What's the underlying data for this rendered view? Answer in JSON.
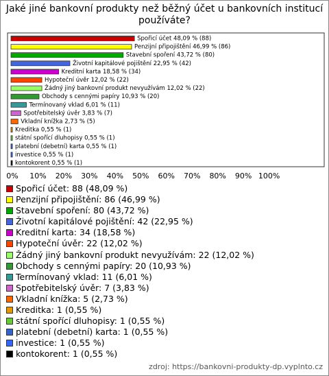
{
  "chart_data": {
    "type": "bar",
    "orientation": "horizontal",
    "title": "Jaké jiné bankovní produkty než běžný účet u bankovních institucí používáte?",
    "categories": [
      "Spořicí účet",
      "Penzijní připojištění",
      "Stavební spoření",
      "Životní kapitálové pojištění",
      "Kreditní karta",
      "Hypoteční úvěr",
      "Žádný jiný bankovní produkt nevyužívám",
      "Obchody s cennými papíry",
      "Termínovaný vklad",
      "Spotřebitelský úvěr",
      "Vkladní knížka",
      "Kreditka",
      "státní spořící dluhopisy",
      "platební (debetní) karta",
      "investice",
      "kontokorent"
    ],
    "values": [
      48.09,
      46.99,
      43.72,
      22.95,
      18.58,
      12.02,
      12.02,
      10.93,
      6.01,
      3.83,
      2.73,
      0.55,
      0.55,
      0.55,
      0.55,
      0.55
    ],
    "value_labels": [
      "Spořicí účet 48,09 % (88)",
      "Penzijní připojištění 46,99 % (86)",
      "Stavební spoření 43,72 % (80)",
      "Životní kapitálové pojištění 22,95 % (42)",
      "Kreditní karta 18,58 % (34)",
      "Hypoteční úvěr 12,02 % (22)",
      "Žádný jiný bankovní produkt nevyužívám 12,02 % (22)",
      "Obchody s cennými papíry 10,93 % (20)",
      "Termínovaný vklad 6,01 % (11)",
      "Spotřebitelský úvěr 3,83 % (7)",
      "Vkladní knížka 2,73 % (5)",
      "Kreditka 0,55 % (1)",
      "státní spořící dluhopisy 0,55 % (1)",
      "platební (debetní) karta 0,55 % (1)",
      "investice 0,55 % (1)",
      "kontokorent 0,55 % (1)"
    ],
    "legend_labels": [
      "Spořicí účet: 88 (48,09 %)",
      "Penzijní připojištění: 86 (46,99 %)",
      "Stavební spoření: 80 (43,72 %)",
      "Životní kapitálové pojištění: 42 (22,95 %)",
      "Kreditní karta: 34 (18,58 %)",
      "Hypoteční úvěr: 22 (12,02 %)",
      "Žádný jiný bankovní produkt nevyužívám: 22 (12,02 %)",
      "Obchody s cennými papíry: 20 (10,93 %)",
      "Termínovaný vklad: 11 (6,01 %)",
      "Spotřebitelský úvěr: 7 (3,83 %)",
      "Vkladní knížka: 5 (2,73 %)",
      "Kreditka: 1 (0,55 %)",
      "státní spořící dluhopisy: 1 (0,55 %)",
      "platební (debetní) karta: 1 (0,55 %)",
      "investice: 1 (0,55 %)",
      "kontokorent: 1 (0,55 %)"
    ],
    "colors": [
      "#cc0000",
      "#ffff00",
      "#00aa00",
      "#4466dd",
      "#cc00cc",
      "#ff4400",
      "#99ff66",
      "#339933",
      "#339999",
      "#cc66cc",
      "#ff6600",
      "#e69900",
      "#66cc33",
      "#3366cc",
      "#3366ff",
      "#000000"
    ],
    "xlim": [
      0,
      122
    ],
    "xticks": [
      {
        "value": 0,
        "label": "0%"
      },
      {
        "value": 10,
        "label": "10%"
      },
      {
        "value": 20,
        "label": "20%"
      },
      {
        "value": 30,
        "label": "30%"
      },
      {
        "value": 40,
        "label": "40%"
      },
      {
        "value": 50,
        "label": "50%"
      },
      {
        "value": 60,
        "label": "60%"
      },
      {
        "value": 70,
        "label": "70%"
      },
      {
        "value": 80,
        "label": "80%"
      },
      {
        "value": 90,
        "label": "90%"
      },
      {
        "value": 100,
        "label": "100%"
      }
    ],
    "source": "zdroj: https://bankovni-produkty-dp.vyplnto.cz"
  }
}
